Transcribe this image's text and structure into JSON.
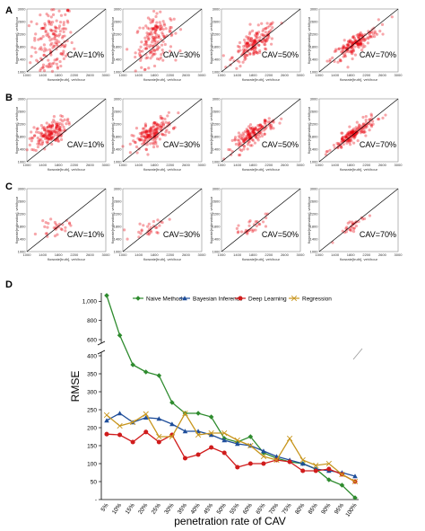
{
  "panels": {
    "a": "A",
    "b": "B",
    "c": "C",
    "d": "D"
  },
  "scatter_axis": {
    "xlabel": "flowrate[truth], veh/hour",
    "ylabel": "flowrate[estimation], veh/hour",
    "xticks": [
      "1000",
      "1400",
      "1800",
      "2200",
      "2600",
      "3000"
    ],
    "yticks": [
      "1000",
      "1400",
      "1800",
      "2200",
      "2600",
      "3000"
    ],
    "tick_values": [
      1000,
      1400,
      1800,
      2200,
      2600,
      3000
    ],
    "range": [
      1000,
      3000
    ],
    "point_color": "#e8000b"
  },
  "chart_data": [
    {
      "type": "scatter",
      "panel": "A",
      "annotation": "CAV=10%",
      "cluster": {
        "cx": 1650,
        "cy": 1950,
        "sx": 260,
        "sy": 620,
        "n": 170,
        "corr": 0.1
      }
    },
    {
      "type": "scatter",
      "panel": "A",
      "annotation": "CAV=30%",
      "cluster": {
        "cx": 1800,
        "cy": 2050,
        "sx": 240,
        "sy": 420,
        "n": 170,
        "corr": 0.35
      }
    },
    {
      "type": "scatter",
      "panel": "A",
      "annotation": "CAV=50%",
      "cluster": {
        "cx": 1850,
        "cy": 1900,
        "sx": 280,
        "sy": 300,
        "n": 170,
        "corr": 0.7
      }
    },
    {
      "type": "scatter",
      "panel": "A",
      "annotation": "CAV=70%",
      "cluster": {
        "cx": 1900,
        "cy": 1880,
        "sx": 300,
        "sy": 280,
        "n": 170,
        "corr": 0.85
      }
    },
    {
      "type": "scatter",
      "panel": "B",
      "annotation": "CAV=10%",
      "cluster": {
        "cx": 1550,
        "cy": 1900,
        "sx": 220,
        "sy": 230,
        "n": 170,
        "corr": 0.5
      }
    },
    {
      "type": "scatter",
      "panel": "B",
      "annotation": "CAV=30%",
      "cluster": {
        "cx": 1750,
        "cy": 1900,
        "sx": 250,
        "sy": 250,
        "n": 170,
        "corr": 0.65
      }
    },
    {
      "type": "scatter",
      "panel": "B",
      "annotation": "CAV=50%",
      "cluster": {
        "cx": 1800,
        "cy": 1880,
        "sx": 260,
        "sy": 240,
        "n": 170,
        "corr": 0.8
      }
    },
    {
      "type": "scatter",
      "panel": "B",
      "annotation": "CAV=70%",
      "cluster": {
        "cx": 1880,
        "cy": 1880,
        "sx": 270,
        "sy": 250,
        "n": 170,
        "corr": 0.88
      }
    },
    {
      "type": "scatter",
      "panel": "C",
      "annotation": "CAV=10%",
      "cluster": {
        "cx": 1700,
        "cy": 1750,
        "sx": 200,
        "sy": 120,
        "n": 30,
        "corr": 0.3
      }
    },
    {
      "type": "scatter",
      "panel": "C",
      "annotation": "CAV=30%",
      "cluster": {
        "cx": 1700,
        "cy": 1750,
        "sx": 220,
        "sy": 150,
        "n": 30,
        "corr": 0.5
      }
    },
    {
      "type": "scatter",
      "panel": "C",
      "annotation": "CAV=50%",
      "cluster": {
        "cx": 1750,
        "cy": 1800,
        "sx": 200,
        "sy": 170,
        "n": 30,
        "corr": 0.7
      }
    },
    {
      "type": "scatter",
      "panel": "C",
      "annotation": "CAV=70%",
      "cluster": {
        "cx": 1850,
        "cy": 1850,
        "sx": 200,
        "sy": 190,
        "n": 30,
        "corr": 0.85
      }
    },
    {
      "type": "line",
      "panel": "D",
      "xlabel": "penetration rate of CAV",
      "ylabel": "RMSE",
      "categories": [
        "5%",
        "10%",
        "15%",
        "20%",
        "25%",
        "30%",
        "35%",
        "40%",
        "45%",
        "50%",
        "55%",
        "60%",
        "65%",
        "70%",
        "75%",
        "80%",
        "85%",
        "90%",
        "95%",
        "100%"
      ],
      "y_ticks_upper": [
        "1,000",
        "800",
        "600"
      ],
      "y_ticks_lower": [
        "400",
        "350",
        "300",
        "250",
        "200",
        "150",
        "100",
        "50",
        "-"
      ],
      "axis_break": true,
      "ylim_lower": [
        0,
        400
      ],
      "ylim_upper": [
        600,
        1050
      ],
      "legend": "top",
      "series": [
        {
          "name": "Naive Method",
          "color": "#2e8b2e",
          "marker": "diamond",
          "values": [
            1060,
            645,
            375,
            355,
            345,
            270,
            240,
            240,
            230,
            170,
            160,
            175,
            130,
            115,
            105,
            100,
            85,
            55,
            40,
            5
          ]
        },
        {
          "name": "Bayesian Inference",
          "color": "#1f4e9a",
          "marker": "triangle",
          "values": [
            220,
            240,
            215,
            228,
            225,
            210,
            190,
            190,
            180,
            165,
            155,
            150,
            135,
            120,
            110,
            100,
            85,
            80,
            75,
            65
          ]
        },
        {
          "name": "Deep Learning",
          "color": "#d01c1c",
          "marker": "circle",
          "values": [
            182,
            180,
            160,
            188,
            160,
            180,
            115,
            125,
            145,
            130,
            90,
            100,
            100,
            110,
            105,
            80,
            80,
            85,
            70,
            50
          ]
        },
        {
          "name": "Regression",
          "color": "#c8961e",
          "marker": "x",
          "values": [
            235,
            205,
            215,
            238,
            175,
            175,
            240,
            180,
            185,
            185,
            165,
            150,
            120,
            110,
            170,
            110,
            95,
            100,
            70,
            50
          ]
        }
      ]
    }
  ]
}
